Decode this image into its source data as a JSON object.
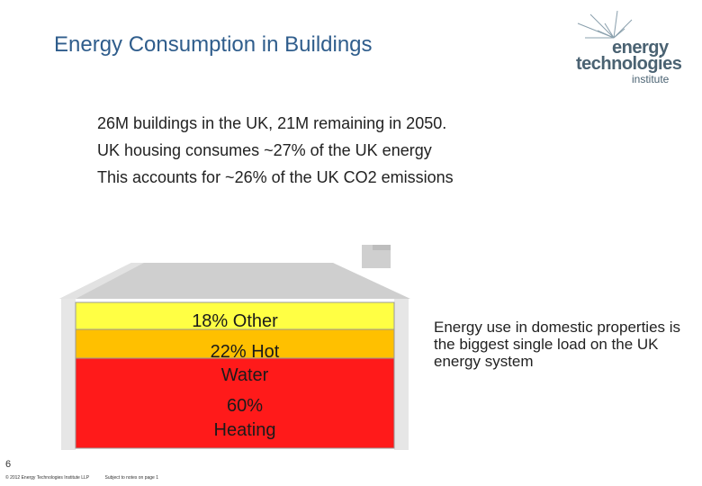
{
  "slide": {
    "title": "Energy Consumption in Buildings",
    "page_number": "6"
  },
  "logo": {
    "line1": "energy",
    "line2": "technologies",
    "line3": "institute"
  },
  "bullets": [
    "26M buildings in the UK, 21M remaining in 2050.",
    "UK housing consumes ~27% of the UK energy",
    "This accounts for ~26% of the UK CO2 emissions"
  ],
  "house": {
    "bands": {
      "other": "18% Other",
      "hot_water": "22% Hot Water",
      "heating": "60% Heating"
    },
    "colors": {
      "other": "#ffff44",
      "hot_water": "#ffc000",
      "heating": "#ff1a1a",
      "roof": "#cccccc"
    }
  },
  "note": "Energy use in domestic properties is the biggest single load on the UK energy system",
  "footer": {
    "copyright": "© 2012 Energy Technologies Institute LLP",
    "subject": "Subject to notes on page 1"
  }
}
